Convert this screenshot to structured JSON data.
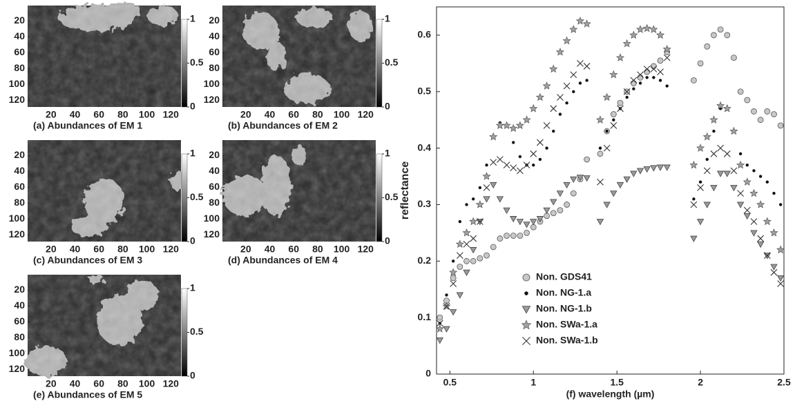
{
  "chart_data": [
    {
      "type": "image",
      "title": "(a) Abundances of EM 1",
      "xlim": [
        0.5,
        128.5
      ],
      "ylim": [
        0.5,
        128.5
      ],
      "xticks": [
        20,
        40,
        60,
        80,
        100,
        120
      ],
      "yticks": [
        20,
        40,
        60,
        80,
        100,
        120
      ],
      "clim": [
        0,
        1
      ],
      "cticks": [
        0,
        0.5,
        1
      ]
    },
    {
      "type": "image",
      "title": "(b) Abundances of EM 2",
      "xlim": [
        0.5,
        128.5
      ],
      "ylim": [
        0.5,
        128.5
      ],
      "xticks": [
        20,
        40,
        60,
        80,
        100,
        120
      ],
      "yticks": [
        20,
        40,
        60,
        80,
        100,
        120
      ],
      "clim": [
        0,
        1
      ],
      "cticks": [
        0,
        0.5,
        1
      ]
    },
    {
      "type": "image",
      "title": "(c) Abundances of EM 3",
      "xlim": [
        0.5,
        128.5
      ],
      "ylim": [
        0.5,
        128.5
      ],
      "xticks": [
        20,
        40,
        60,
        80,
        100,
        120
      ],
      "yticks": [
        20,
        40,
        60,
        80,
        100,
        120
      ],
      "clim": [
        0,
        1
      ],
      "cticks": [
        0,
        0.5,
        1
      ]
    },
    {
      "type": "image",
      "title": "(d) Abundances of EM 4",
      "xlim": [
        0.5,
        128.5
      ],
      "ylim": [
        0.5,
        128.5
      ],
      "xticks": [
        20,
        40,
        60,
        80,
        100,
        120
      ],
      "yticks": [
        20,
        40,
        60,
        80,
        100,
        120
      ],
      "clim": [
        0,
        1
      ],
      "cticks": [
        0,
        0.5,
        1
      ]
    },
    {
      "type": "image",
      "title": "(e) Abundances of EM 5",
      "xlim": [
        0.5,
        128.5
      ],
      "ylim": [
        0.5,
        128.5
      ],
      "xticks": [
        20,
        40,
        60,
        80,
        100,
        120
      ],
      "yticks": [
        20,
        40,
        60,
        80,
        100,
        120
      ],
      "clim": [
        0,
        1
      ],
      "cticks": [
        0,
        0.5,
        1
      ]
    },
    {
      "type": "scatter",
      "x_label": "(f) wavelength (µm)",
      "y_label": "reflectance",
      "xlim": [
        0.42,
        2.5
      ],
      "ylim": [
        0,
        0.65
      ],
      "xticks": [
        0.5,
        1,
        1.5,
        2,
        2.5
      ],
      "yticks": [
        0,
        0.1,
        0.2,
        0.3,
        0.4,
        0.5,
        0.6
      ],
      "legend": "lower left",
      "x": [
        0.44,
        0.48,
        0.52,
        0.56,
        0.6,
        0.64,
        0.68,
        0.72,
        0.76,
        0.8,
        0.84,
        0.88,
        0.92,
        0.96,
        1.0,
        1.04,
        1.08,
        1.12,
        1.16,
        1.2,
        1.24,
        1.28,
        1.32,
        1.36,
        1.4,
        1.44,
        1.48,
        1.52,
        1.56,
        1.6,
        1.64,
        1.68,
        1.72,
        1.76,
        1.8,
        1.84,
        1.88,
        1.92,
        1.96,
        2.0,
        2.04,
        2.08,
        2.12,
        2.16,
        2.2,
        2.24,
        2.28,
        2.32,
        2.36,
        2.4,
        2.44,
        2.48
      ],
      "series": [
        {
          "name": "Non. GDS41",
          "marker": "circle",
          "color": "#c8c8c8",
          "values": [
            0.1,
            0.13,
            0.17,
            0.19,
            0.2,
            0.2,
            0.205,
            0.21,
            0.225,
            0.24,
            0.245,
            0.245,
            0.245,
            0.25,
            0.26,
            0.27,
            0.28,
            0.285,
            0.29,
            0.3,
            0.32,
            0.345,
            0.38,
            null,
            0.39,
            0.43,
            0.46,
            0.48,
            0.5,
            0.515,
            0.525,
            0.535,
            0.545,
            0.555,
            0.57,
            null,
            null,
            null,
            0.52,
            0.55,
            0.58,
            0.6,
            0.61,
            0.6,
            0.56,
            0.5,
            0.485,
            0.465,
            0.45,
            0.465,
            0.46,
            0.44
          ]
        },
        {
          "name": "Non. NG-1.a",
          "marker": "dot",
          "color": "#111111",
          "values": [
            0.09,
            0.14,
            0.2,
            0.27,
            0.3,
            0.31,
            0.33,
            0.37,
            0.42,
            0.445,
            0.44,
            0.41,
            0.385,
            0.37,
            0.37,
            0.38,
            0.4,
            0.43,
            0.46,
            0.48,
            0.5,
            0.515,
            0.52,
            null,
            0.4,
            0.43,
            0.45,
            0.47,
            0.49,
            0.505,
            0.515,
            0.525,
            0.525,
            0.52,
            0.51,
            null,
            null,
            null,
            0.31,
            0.34,
            0.38,
            0.43,
            0.47,
            0.47,
            0.43,
            0.39,
            0.37,
            0.36,
            0.35,
            0.34,
            0.32,
            0.3
          ]
        },
        {
          "name": "Non. NG-1.b",
          "marker": "triangle",
          "color": "#9a9a9a",
          "values": [
            0.06,
            0.08,
            0.11,
            0.14,
            0.18,
            0.22,
            0.27,
            0.31,
            0.335,
            0.31,
            0.29,
            0.275,
            0.27,
            0.265,
            0.27,
            0.275,
            0.29,
            0.305,
            0.32,
            0.335,
            0.345,
            0.348,
            0.347,
            null,
            0.27,
            0.3,
            0.32,
            0.335,
            0.345,
            0.355,
            0.36,
            0.363,
            0.365,
            0.366,
            0.366,
            null,
            null,
            null,
            0.24,
            0.27,
            0.3,
            0.33,
            0.355,
            0.355,
            0.33,
            0.3,
            0.28,
            0.25,
            0.23,
            0.21,
            0.19,
            0.17
          ]
        },
        {
          "name": "Non. SWa-1.a",
          "marker": "star",
          "color": "#a0a0a0",
          "values": [
            0.08,
            0.12,
            0.18,
            0.23,
            0.25,
            0.27,
            0.3,
            0.35,
            0.42,
            0.44,
            0.44,
            0.435,
            0.44,
            0.45,
            0.47,
            0.49,
            0.51,
            0.54,
            0.57,
            0.59,
            0.61,
            0.625,
            0.62,
            null,
            0.45,
            0.49,
            0.53,
            0.56,
            0.585,
            0.6,
            0.61,
            0.612,
            0.61,
            0.6,
            0.575,
            null,
            null,
            null,
            0.37,
            0.4,
            0.42,
            0.45,
            0.475,
            0.47,
            0.43,
            0.37,
            0.34,
            0.32,
            0.3,
            0.27,
            0.25,
            0.22
          ]
        },
        {
          "name": "Non. SWa-1.b",
          "marker": "cross",
          "color": "#333333",
          "values": [
            0.09,
            0.12,
            0.16,
            0.21,
            0.23,
            0.24,
            0.27,
            0.33,
            0.375,
            0.38,
            0.37,
            0.365,
            0.36,
            0.37,
            0.39,
            0.41,
            0.44,
            0.47,
            0.49,
            0.51,
            0.53,
            0.55,
            0.545,
            null,
            0.34,
            0.4,
            0.44,
            0.47,
            0.5,
            0.52,
            0.53,
            0.54,
            0.54,
            0.535,
            0.56,
            null,
            null,
            null,
            0.3,
            0.33,
            0.36,
            0.39,
            0.4,
            0.39,
            0.36,
            0.32,
            0.29,
            0.27,
            0.24,
            0.21,
            0.18,
            0.16
          ]
        }
      ]
    }
  ]
}
